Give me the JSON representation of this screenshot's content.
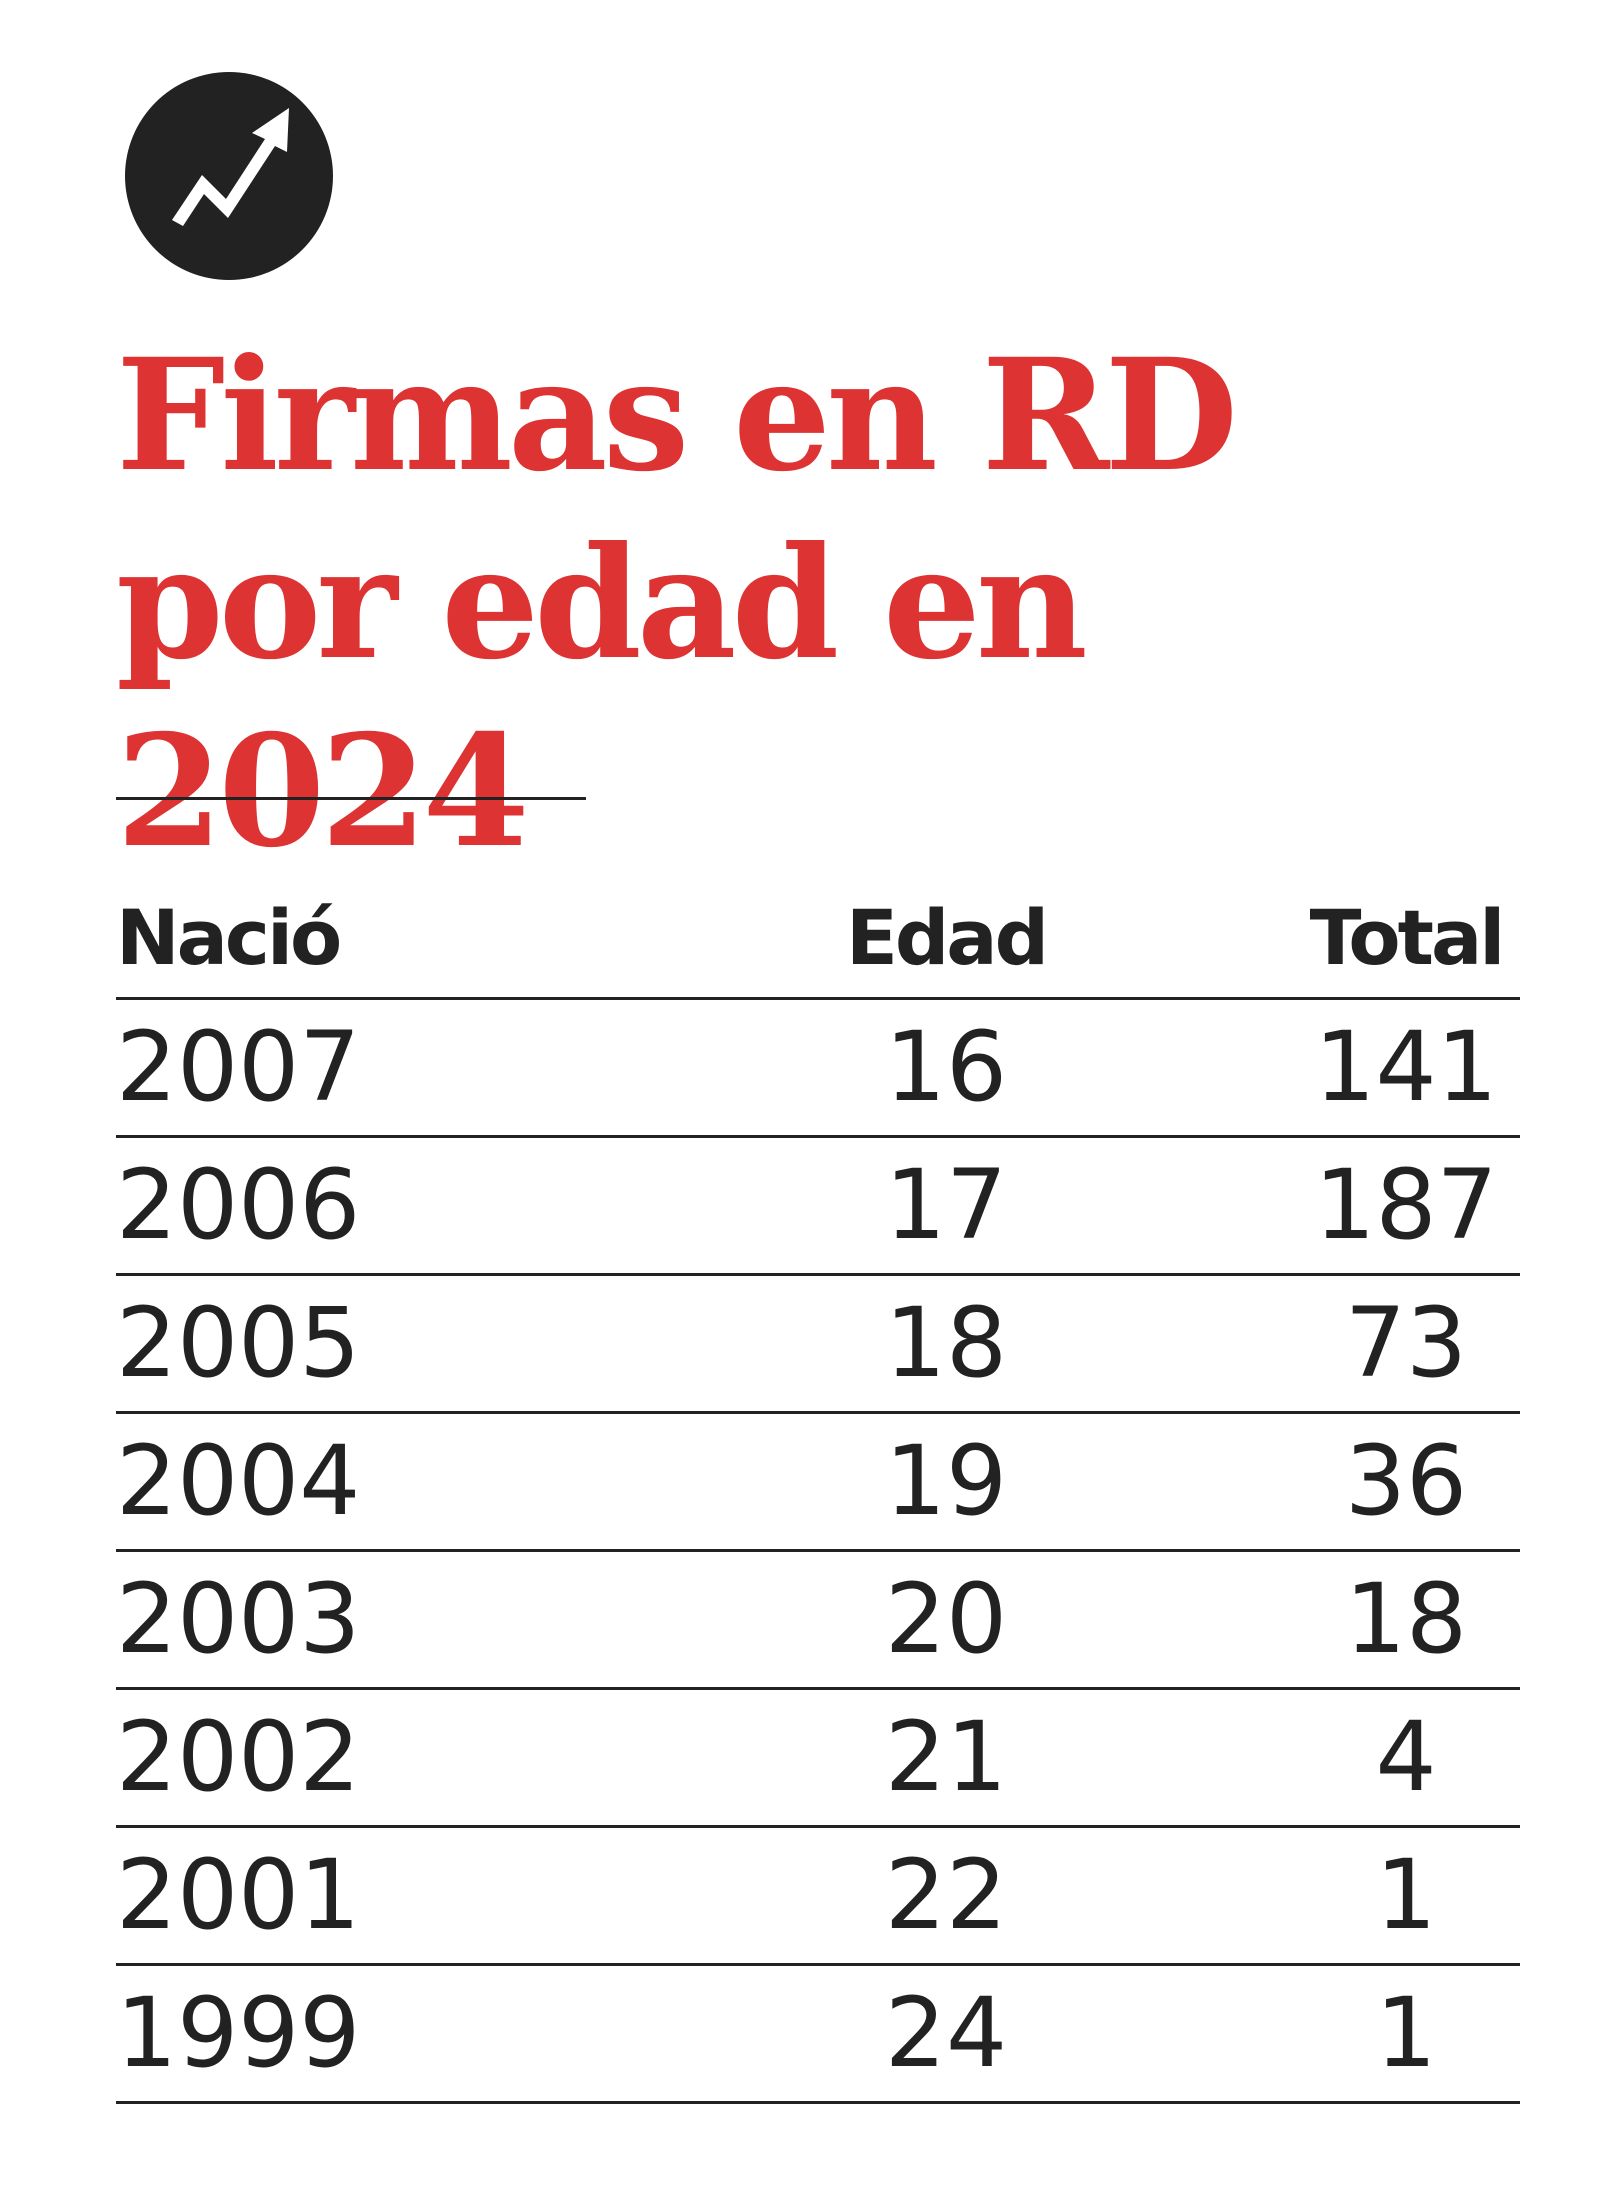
{
  "colors": {
    "title": "#dd3333",
    "text": "#222222",
    "logo_circle": "#222222",
    "logo_arrow": "#ffffff"
  },
  "logo": {
    "icon": "trending-arrow-icon"
  },
  "title": "Firmas en RD por edad en 2024",
  "chart_data": {
    "type": "table",
    "title": "Firmas en RD por edad en 2024",
    "columns": [
      "Nació",
      "Edad",
      "Total"
    ],
    "rows": [
      [
        "2007",
        "16",
        "141"
      ],
      [
        "2006",
        "17",
        "187"
      ],
      [
        "2005",
        "18",
        "73"
      ],
      [
        "2004",
        "19",
        "36"
      ],
      [
        "2003",
        "20",
        "18"
      ],
      [
        "2002",
        "21",
        "4"
      ],
      [
        "2001",
        "22",
        "1"
      ],
      [
        "1999",
        "24",
        "1"
      ]
    ]
  }
}
